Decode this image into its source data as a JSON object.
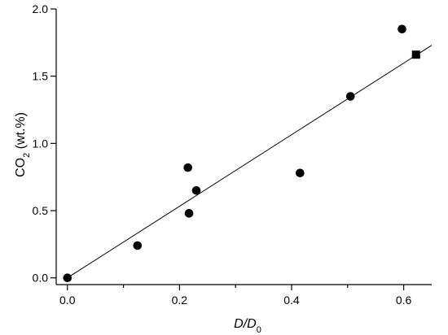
{
  "chart_data": {
    "type": "scatter",
    "title": "",
    "xlabel": {
      "main": "D/D",
      "sub": "0",
      "italic": true
    },
    "ylabel": {
      "main": "CO",
      "sub": "2",
      "suffix": " (wt.%)"
    },
    "xlim": [
      -0.02,
      0.65
    ],
    "ylim": [
      -0.05,
      2.0
    ],
    "xticks": [
      0.0,
      0.2,
      0.4,
      0.6
    ],
    "xtick_labels": [
      "0.0",
      "0.2",
      "0.4",
      "0.6"
    ],
    "xminor_ticks": [
      0.1,
      0.3,
      0.5
    ],
    "yticks": [
      0.0,
      0.5,
      1.0,
      1.5,
      2.0
    ],
    "ytick_labels": [
      "0.0",
      "0.5",
      "1.0",
      "1.5",
      "2.0"
    ],
    "grid": false,
    "legend": "none",
    "series": [
      {
        "marker": "circle",
        "color": "#000000",
        "points": [
          {
            "x": 0.0,
            "y": 0.0
          },
          {
            "x": 0.125,
            "y": 0.24
          },
          {
            "x": 0.215,
            "y": 0.82
          },
          {
            "x": 0.217,
            "y": 0.48
          },
          {
            "x": 0.23,
            "y": 0.65
          },
          {
            "x": 0.415,
            "y": 0.78
          },
          {
            "x": 0.505,
            "y": 1.35
          },
          {
            "x": 0.597,
            "y": 1.85
          }
        ]
      },
      {
        "marker": "square",
        "color": "#000000",
        "points": [
          {
            "x": 0.622,
            "y": 1.66
          }
        ]
      }
    ],
    "fit_line": {
      "type": "linear",
      "from": {
        "x": 0.0,
        "y": 0.0
      },
      "to": {
        "x": 0.65,
        "y": 1.73
      },
      "color": "#000000"
    }
  }
}
